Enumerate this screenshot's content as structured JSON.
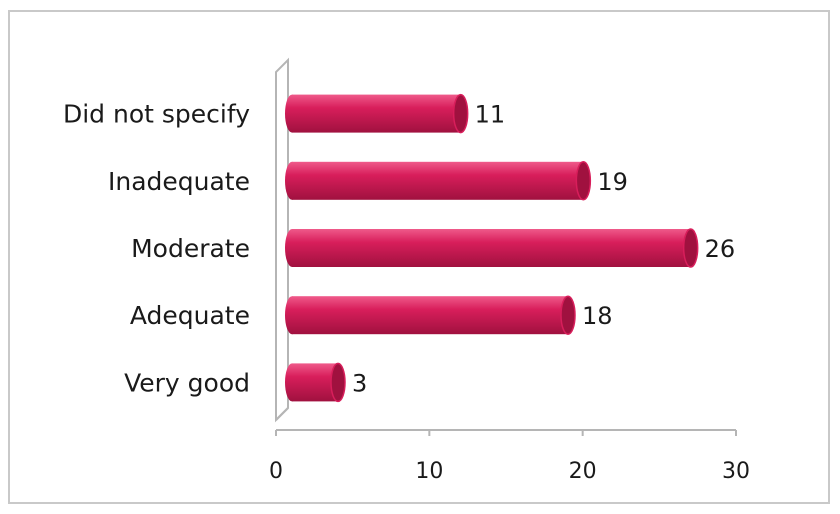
{
  "chart_data": {
    "type": "bar",
    "orientation": "horizontal",
    "style": "3d-cylinder",
    "categories": [
      "Very good",
      "Adequate",
      "Moderate",
      "Inadequate",
      "Did not specify"
    ],
    "values": [
      3,
      18,
      26,
      19,
      11
    ],
    "data_labels": [
      "3",
      "18",
      "26",
      "19",
      "11"
    ],
    "xlim": [
      0,
      30
    ],
    "x_ticks": [
      0,
      10,
      20,
      30
    ],
    "x_tick_labels": [
      "0",
      "10",
      "20",
      "30"
    ],
    "title": "",
    "xlabel": "",
    "ylabel": "",
    "grid": false,
    "legend": "none",
    "colors": {
      "bar": "#d81e5b",
      "bar_dark": "#a0113f",
      "bar_light": "#ef5a8a",
      "axis": "#b5b5b5"
    }
  }
}
